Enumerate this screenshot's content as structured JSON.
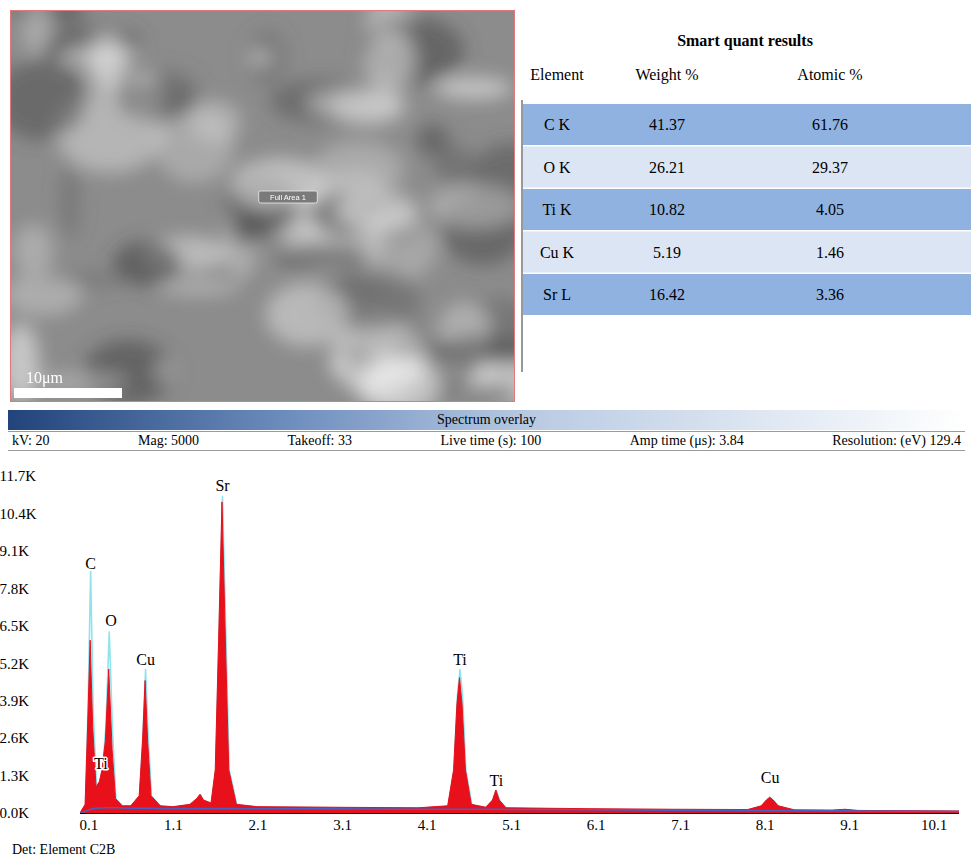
{
  "image": {
    "scale_bar": "10μm",
    "area_label": "Full Area 1"
  },
  "table": {
    "title": "Smart quant results",
    "columns": [
      "Element",
      "Weight %",
      "Atomic %"
    ],
    "rows": [
      [
        "C K",
        41.37,
        61.76
      ],
      [
        "O K",
        26.21,
        29.37
      ],
      [
        "Ti K",
        10.82,
        4.05
      ],
      [
        "Cu K",
        5.19,
        1.46
      ],
      [
        "Sr L",
        16.42,
        3.36
      ]
    ]
  },
  "spectrum_header": {
    "title": "Spectrum overlay",
    "parameters": [
      "kV: 20",
      "Mag: 5000",
      "Takeoff: 33",
      "Live time (s): 100",
      "Amp time (μs): 3.84",
      "Resolution: (eV) 129.4"
    ]
  },
  "chart_data": {
    "type": "area",
    "x": [
      0,
      0.06,
      0.09,
      0.12,
      0.15,
      0.19,
      0.23,
      0.26,
      0.3,
      0.34,
      0.38,
      0.42,
      0.5,
      0.6,
      0.7,
      0.74,
      0.77,
      0.8,
      0.84,
      0.95,
      1.1,
      1.3,
      1.38,
      1.42,
      1.46,
      1.55,
      1.6,
      1.64,
      1.68,
      1.72,
      1.76,
      1.85,
      2.1,
      3.0,
      4.0,
      4.35,
      4.42,
      4.46,
      4.49,
      4.52,
      4.56,
      4.63,
      4.8,
      4.88,
      4.92,
      4.96,
      5.04,
      6.0,
      7.0,
      7.9,
      8.06,
      8.12,
      8.16,
      8.2,
      8.26,
      8.45,
      8.9,
      9.05,
      9.2,
      10.4
    ],
    "series": [
      {
        "type": "line",
        "color": "#8fe3ee",
        "values": [
          0,
          300,
          3800,
          8400,
          3600,
          900,
          1100,
          1500,
          3000,
          6300,
          2800,
          500,
          250,
          250,
          600,
          2800,
          5000,
          2800,
          600,
          250,
          220,
          300,
          500,
          650,
          450,
          350,
          1500,
          6300,
          11000,
          6300,
          1500,
          300,
          220,
          200,
          180,
          250,
          1500,
          4100,
          5000,
          4100,
          1500,
          300,
          200,
          450,
          800,
          450,
          180,
          150,
          130,
          120,
          250,
          450,
          550,
          450,
          250,
          110,
          100,
          130,
          90,
          70
        ]
      },
      {
        "type": "area",
        "color": "#e8101a",
        "values": [
          0,
          300,
          3000,
          6000,
          3000,
          900,
          1100,
          1500,
          2500,
          5000,
          2200,
          500,
          250,
          250,
          600,
          2500,
          4600,
          2500,
          600,
          250,
          220,
          300,
          500,
          650,
          450,
          350,
          1500,
          6000,
          10800,
          6000,
          1500,
          300,
          220,
          200,
          180,
          250,
          1500,
          3800,
          4700,
          3800,
          1500,
          300,
          200,
          450,
          800,
          450,
          180,
          150,
          130,
          120,
          250,
          450,
          550,
          450,
          250,
          110,
          100,
          130,
          90,
          70
        ]
      },
      {
        "type": "line",
        "color": "#4a5fc1",
        "values": [
          0,
          80,
          120,
          150,
          170,
          180,
          190,
          190,
          200,
          200,
          200,
          200,
          190,
          180,
          180,
          180,
          180,
          180,
          180,
          170,
          170,
          170,
          170,
          170,
          170,
          170,
          170,
          170,
          170,
          170,
          170,
          170,
          165,
          160,
          150,
          150,
          150,
          150,
          150,
          150,
          150,
          150,
          145,
          145,
          145,
          145,
          140,
          130,
          115,
          105,
          100,
          100,
          100,
          100,
          100,
          95,
          90,
          90,
          88,
          70
        ]
      }
    ],
    "xlim": [
      0,
      10.4
    ],
    "xticks": [
      0.1,
      1.1,
      2.1,
      3.1,
      4.1,
      5.1,
      6.1,
      7.1,
      8.1,
      9.1,
      10.1
    ],
    "ylim": [
      0,
      11700
    ],
    "yticks": [
      {
        "value": 0,
        "label": "0.0K"
      },
      {
        "value": 1300,
        "label": "1.3K"
      },
      {
        "value": 2600,
        "label": "2.6K"
      },
      {
        "value": 3900,
        "label": "3.9K"
      },
      {
        "value": 5200,
        "label": "5.2K"
      },
      {
        "value": 6500,
        "label": "6.5K"
      },
      {
        "value": 7800,
        "label": "7.8K"
      },
      {
        "value": 9100,
        "label": "9.1K"
      },
      {
        "value": 10400,
        "label": "10.4K"
      },
      {
        "value": 11700,
        "label": "11.7K"
      }
    ],
    "annotations": [
      {
        "x": 0.12,
        "y": 8500,
        "text": "C"
      },
      {
        "x": 0.36,
        "y": 6500,
        "text": "O"
      },
      {
        "x": 0.24,
        "y": 1550,
        "text": "Ti"
      },
      {
        "x": 0.77,
        "y": 5150,
        "text": "Cu"
      },
      {
        "x": 1.68,
        "y": 11200,
        "text": "Sr"
      },
      {
        "x": 4.49,
        "y": 5150,
        "text": "Ti"
      },
      {
        "x": 4.92,
        "y": 950,
        "text": "Ti"
      },
      {
        "x": 8.16,
        "y": 1050,
        "text": "Cu"
      }
    ],
    "grid": false
  },
  "footer": "Det: Element C2B"
}
